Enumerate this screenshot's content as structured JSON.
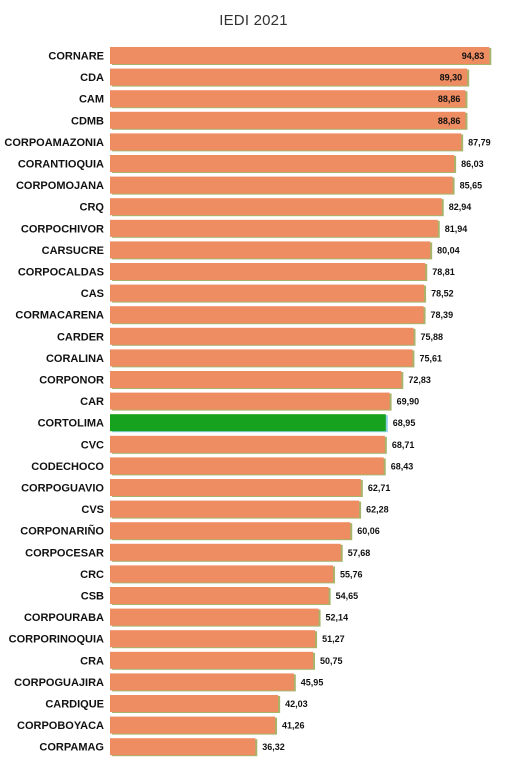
{
  "chart_data": {
    "type": "bar",
    "orientation": "horizontal",
    "title": "IEDI 2021",
    "xlabel": "",
    "ylabel": "",
    "xlim": [
      0,
      100
    ],
    "grid": false,
    "legend": "none",
    "colors": {
      "bar": "#ee8c62",
      "highlight": "#16a21e",
      "shadow": "#a8b46b"
    },
    "highlight_category": "CORTOLIMA",
    "categories": [
      "CORNARE",
      "CDA",
      "CAM",
      "CDMB",
      "CORPOAMAZONIA",
      "CORANTIOQUIA",
      "CORPOMOJANA",
      "CRQ",
      "CORPOCHIVOR",
      "CARSUCRE",
      "CORPOCALDAS",
      "CAS",
      "CORMACARENA",
      "CARDER",
      "CORALINA",
      "CORPONOR",
      "CAR",
      "CORTOLIMA",
      "CVC",
      "CODECHOCO",
      "CORPOGUAVIO",
      "CVS",
      "CORPONARIÑO",
      "CORPOCESAR",
      "CRC",
      "CSB",
      "CORPOURABA",
      "CORPORINOQUIA",
      "CRA",
      "CORPOGUAJIRA",
      "CARDIQUE",
      "CORPOBOYACA",
      "CORPAMAG"
    ],
    "values": [
      94.83,
      89.3,
      88.86,
      88.86,
      87.79,
      86.03,
      85.65,
      82.94,
      81.94,
      80.04,
      78.81,
      78.52,
      78.39,
      75.88,
      75.61,
      72.83,
      69.9,
      68.95,
      68.71,
      68.43,
      62.71,
      62.28,
      60.06,
      57.68,
      55.76,
      54.65,
      52.14,
      51.27,
      50.75,
      45.95,
      42.03,
      41.26,
      36.32
    ],
    "labels": [
      "94,83",
      "89,30",
      "88,86",
      "88,86",
      "87,79",
      "86,03",
      "85,65",
      "82,94",
      "81,94",
      "80,04",
      "78,81",
      "78,52",
      "78,39",
      "75,88",
      "75,61",
      "72,83",
      "69,90",
      "68,95",
      "68,71",
      "68,43",
      "62,71",
      "62,28",
      "60,06",
      "57,68",
      "55,76",
      "54,65",
      "52,14",
      "51,27",
      "50,75",
      "45,95",
      "42,03",
      "41,26",
      "36,32"
    ]
  }
}
